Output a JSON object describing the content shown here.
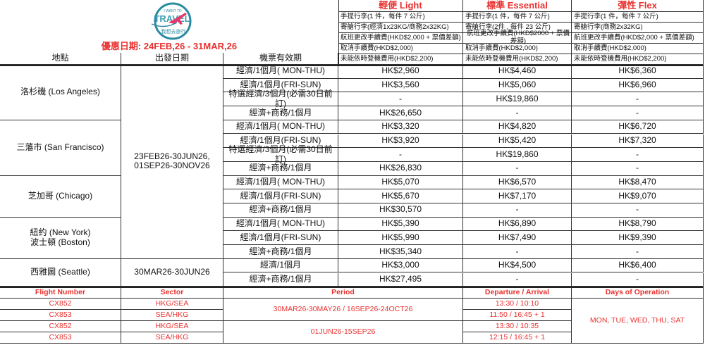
{
  "logo": {
    "text_top": "I WANT TO",
    "text_main": "TRAVEL",
    "text_cn": "我想去旅行",
    "colors": {
      "ring": "#2a8aa0",
      "plane": "#e23a6b"
    }
  },
  "promo": "優惠日期: 24FEB,26 - 31MAR,26",
  "headers": {
    "location": "地點",
    "departure_date": "出發日期",
    "validity": "機票有效期"
  },
  "fares": [
    {
      "title": "輕便 Light",
      "terms": [
        "手提行李(1 件，每件 7 公斤)",
        "寄艙行李(經濟1x23KG/商務2x32KG)",
        "航班更改手續費(HKD$2,000 + 票價差額)",
        "取消手續費(HKD$2,000)",
        "未能依時登機費用(HKD$2,200)"
      ]
    },
    {
      "title": "標準 Essential",
      "terms": [
        "手提行李(1 件，每件 7 公斤)",
        "寄艙行李(2件 , 每件 23 公斤)",
        "航班更改手續費(HKD$2000 + 票價差額)",
        "取消手續費(HKD$2,000)",
        "未能依時登機費用(HKD$2,200)"
      ]
    },
    {
      "title": "彈性 Flex",
      "terms": [
        "手提行李(1 件，每件 7 公斤)",
        "寄艙行李(商務2x32KG)",
        "航班更改手續費(HKD$2,000 + 票價差額)",
        "取消手續費(HKD$2,000)",
        "未能依時登機費用(HKD$2,200)"
      ]
    }
  ],
  "destinations": [
    {
      "name": "洛杉磯 (Los Angeles)",
      "rows": [
        [
          "經濟/1個月( MON-THU)",
          "HK$2,960",
          "HK$4,460",
          "HK$6,360"
        ],
        [
          "經濟/1個月(FRI-SUN)",
          "HK$3,560",
          "HK$5,060",
          "HK$6,960"
        ],
        [
          "特選經濟/3個月(必需30日前訂)",
          "-",
          "HK$19,860",
          "-"
        ],
        [
          "經濟+商務/1個月",
          "HK$26,650",
          "-",
          "-"
        ]
      ]
    },
    {
      "name": "三藩市 (San Francisco)",
      "rows": [
        [
          "經濟/1個月( MON-THU)",
          "HK$3,320",
          "HK$4,820",
          "HK$6,720"
        ],
        [
          "經濟/1個月(FRI-SUN)",
          "HK$3,920",
          "HK$5,420",
          "HK$7,320"
        ],
        [
          "特選經濟/3個月(必需30日前訂)",
          "-",
          "HK$19,860",
          "-"
        ],
        [
          "經濟+商務/1個月",
          "HK$26,830",
          "-",
          "-"
        ]
      ]
    },
    {
      "name": "芝加哥 (Chicago)",
      "rows": [
        [
          "經濟/1個月( MON-THU)",
          "HK$5,070",
          "HK$6,570",
          "HK$8,470"
        ],
        [
          "經濟/1個月(FRI-SUN)",
          "HK$5,670",
          "HK$7,170",
          "HK$9,070"
        ],
        [
          "經濟+商務/1個月",
          "HK$30,570",
          "-",
          "-"
        ]
      ]
    },
    {
      "name": "紐約 (New York)\n波士頓 (Boston)",
      "rows": [
        [
          "經濟/1個月( MON-THU)",
          "HK$5,390",
          "HK$6,890",
          "HK$8,790"
        ],
        [
          "經濟/1個月(FRI-SUN)",
          "HK$5,990",
          "HK$7,490",
          "HK$9,390"
        ],
        [
          "經濟+商務/1個月",
          "HK$35,340",
          "-",
          "-"
        ]
      ]
    },
    {
      "name": "西雅圖 (Seattle)",
      "rows": [
        [
          "經濟/1個月",
          "HK$3,000",
          "HK$4,500",
          "HK$6,400"
        ],
        [
          "經濟+商務/1個月",
          "HK$27,495",
          "-",
          "-"
        ]
      ]
    }
  ],
  "departure_periods": [
    "23FEB26-30JUN26,\n01SEP26-30NOV26",
    "30MAR26-30JUN26"
  ],
  "flights": {
    "headers": [
      "Flight Number",
      "Sector",
      "Period",
      "Departure / Arrival",
      "Days of Operation"
    ],
    "rows": [
      [
        "CX852",
        "HKG/SEA",
        "13:30 / 10:10"
      ],
      [
        "CX853",
        "SEA/HKG",
        "11:50 / 16:45 + 1"
      ],
      [
        "CX852",
        "HKG/SEA",
        "13:30 / 10:35"
      ],
      [
        "CX853",
        "SEA/HKG",
        "12:15 / 16:45 + 1"
      ]
    ],
    "periods": [
      "30MAR26-30MAY26 / 16SEP26-24OCT26",
      "01JUN26-15SEP26"
    ],
    "days": "MON, TUE, WED, THU, SAT"
  }
}
